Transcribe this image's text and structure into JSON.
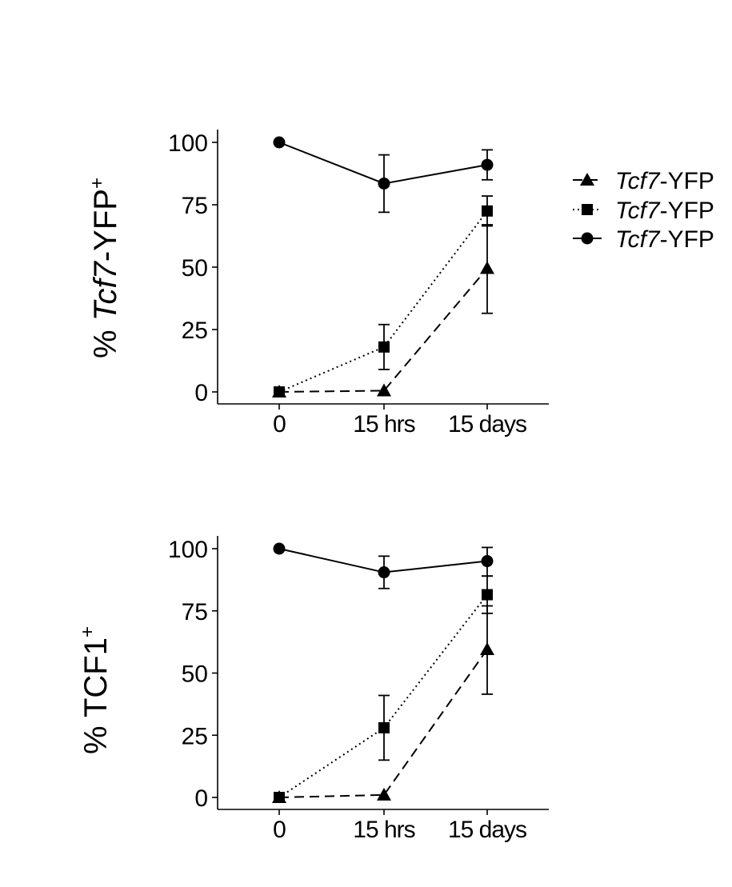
{
  "chart_data": [
    {
      "type": "line",
      "title": "",
      "ylabel": {
        "prefix": "% ",
        "italic": "Tcf7",
        "rest": "-YFP",
        "sup": "+"
      },
      "xlabel": "",
      "categories": [
        "0",
        "15 hrs",
        "15 days"
      ],
      "ylim": [
        0,
        100
      ],
      "yticks": [
        "0",
        "25",
        "50",
        "75",
        "100"
      ],
      "grid": false,
      "series": [
        {
          "name": "Tcf7-YFP",
          "marker": "triangle",
          "linestyle": "dashed",
          "values": [
            0,
            0.5,
            49.5
          ],
          "err_low": [
            0,
            0,
            31.5
          ],
          "err_high": [
            0,
            0,
            67
          ]
        },
        {
          "name": "Tcf7-YFP",
          "marker": "square",
          "linestyle": "dotted",
          "values": [
            0,
            18,
            72.5
          ],
          "err_low": [
            0,
            9,
            66.5
          ],
          "err_high": [
            0,
            27,
            78.5
          ]
        },
        {
          "name": "Tcf7-YFP",
          "marker": "circle",
          "linestyle": "solid",
          "values": [
            100,
            83.5,
            91
          ],
          "err_low": [
            100,
            72,
            85
          ],
          "err_high": [
            100,
            95,
            97
          ]
        }
      ]
    },
    {
      "type": "line",
      "title": "",
      "ylabel": {
        "prefix": "% TCF1",
        "italic": "",
        "rest": "",
        "sup": "+"
      },
      "xlabel": "",
      "categories": [
        "0",
        "15 hrs",
        "15 days"
      ],
      "ylim": [
        0,
        100
      ],
      "yticks": [
        "0",
        "25",
        "50",
        "75",
        "100"
      ],
      "grid": false,
      "series": [
        {
          "name": "Tcf7-YFP",
          "marker": "triangle",
          "linestyle": "dashed",
          "values": [
            0,
            1,
            59.5
          ],
          "err_low": [
            0,
            0,
            41.5
          ],
          "err_high": [
            0,
            0,
            77
          ]
        },
        {
          "name": "Tcf7-YFP",
          "marker": "square",
          "linestyle": "dotted",
          "values": [
            0,
            28,
            81.5
          ],
          "err_low": [
            0,
            15,
            74
          ],
          "err_high": [
            0,
            41,
            89
          ]
        },
        {
          "name": "Tcf7-YFP",
          "marker": "circle",
          "linestyle": "solid",
          "values": [
            100,
            90.5,
            95
          ],
          "err_low": [
            100,
            84,
            89
          ],
          "err_high": [
            100,
            97,
            100.5
          ]
        }
      ]
    }
  ],
  "legend": {
    "placement": "right",
    "items": [
      {
        "italic": "Tcf7",
        "rest": "-YFP",
        "marker": "triangle",
        "linestyle": "dashed"
      },
      {
        "italic": "Tcf7",
        "rest": "-YFP",
        "marker": "square",
        "linestyle": "dotted"
      },
      {
        "italic": "Tcf7",
        "rest": "-YFP",
        "marker": "circle",
        "linestyle": "solid"
      }
    ]
  }
}
